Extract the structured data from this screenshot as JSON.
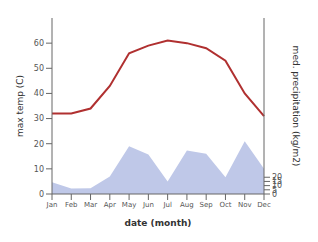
{
  "chart_data": {
    "type": "line",
    "categories": [
      "Jan",
      "Feb",
      "Mar",
      "Apr",
      "May",
      "Jun",
      "Jul",
      "Aug",
      "Sep",
      "Oct",
      "Nov",
      "Dec"
    ],
    "series": [
      {
        "type": "area",
        "axis": "y2",
        "color": "#bfc8e8",
        "values": [
          14,
          6.5,
          7,
          21,
          57,
          47,
          15,
          52,
          48,
          20,
          63,
          30
        ]
      },
      {
        "type": "line",
        "color": "#b03030",
        "values": [
          32,
          32,
          34,
          43,
          56,
          59,
          61,
          60,
          58,
          53,
          40,
          31
        ]
      }
    ],
    "xlabel": "date (month)",
    "ylabel": "max temp (C)",
    "y2label": "med. precipitation (kg/m2)",
    "ylim": [
      0,
      70
    ],
    "yticks": [
      0,
      10,
      20,
      30,
      40,
      50,
      60
    ],
    "y2lim": [
      0,
      210
    ],
    "y2ticks": [
      0,
      5,
      10,
      15,
      20
    ],
    "grid": false
  }
}
